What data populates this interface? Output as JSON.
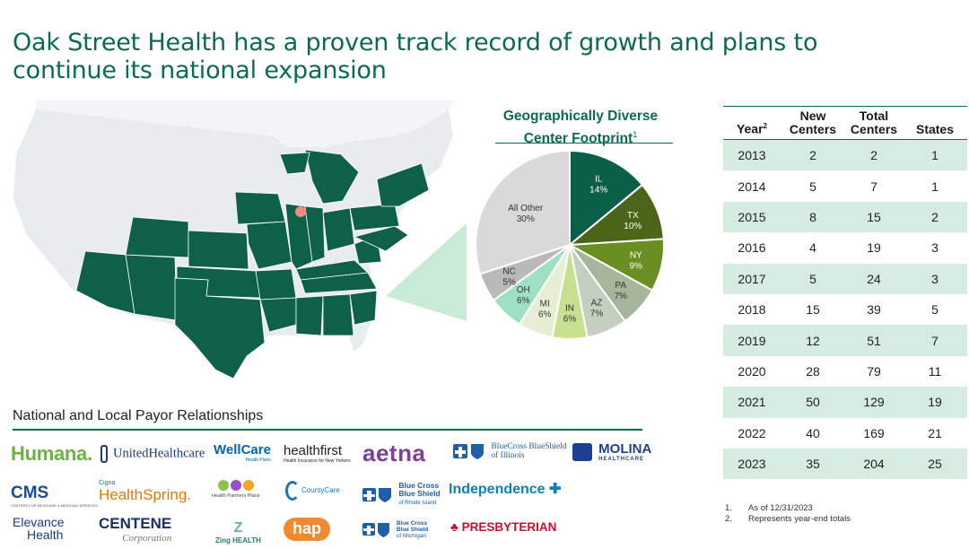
{
  "title": "Oak Street Health has a proven track record of growth and plans to continue its national expansion",
  "colors": {
    "brand_green": "#0b6b4e",
    "map_state": "#0e6048",
    "map_background": "#e8ecef",
    "table_stripe": "#d6ece0"
  },
  "pie": {
    "title": "Geographically Diverse Center Footprint",
    "title_footnote": "1"
  },
  "chart_data": {
    "type": "pie",
    "title": "Geographically Diverse Center Footprint",
    "slices": [
      {
        "label": "IL",
        "value": 14,
        "display": "14%",
        "color": "#0b5f48",
        "text_color": "#ffffff"
      },
      {
        "label": "TX",
        "value": 10,
        "display": "10%",
        "color": "#4a6518",
        "text_color": "#ffffff"
      },
      {
        "label": "NY",
        "value": 9,
        "display": "9%",
        "color": "#6b8e23",
        "text_color": "#ffffff"
      },
      {
        "label": "PA",
        "value": 7,
        "display": "7%",
        "color": "#a6b69a",
        "text_color": "#333333"
      },
      {
        "label": "AZ",
        "value": 7,
        "display": "7%",
        "color": "#c5cfbf",
        "text_color": "#333333"
      },
      {
        "label": "IN",
        "value": 6,
        "display": "6%",
        "color": "#c7e08f",
        "text_color": "#333333"
      },
      {
        "label": "MI",
        "value": 6,
        "display": "6%",
        "color": "#e6efd4",
        "text_color": "#333333"
      },
      {
        "label": "OH",
        "value": 6,
        "display": "6%",
        "color": "#9fe0c4",
        "text_color": "#333333"
      },
      {
        "label": "NC",
        "value": 5,
        "display": "5%",
        "color": "#b9b9b9",
        "text_color": "#333333"
      },
      {
        "label": "All Other",
        "value": 30,
        "display": "30%",
        "color": "#d9d9d9",
        "text_color": "#333333"
      }
    ]
  },
  "table": {
    "headers": {
      "year": "Year",
      "year_sup": "2",
      "new1": "New",
      "new2": "Centers",
      "total1": "Total",
      "total2": "Centers",
      "states": "States"
    },
    "rows": [
      {
        "year": "2013",
        "new": "2",
        "total": "2",
        "states": "1"
      },
      {
        "year": "2014",
        "new": "5",
        "total": "7",
        "states": "1"
      },
      {
        "year": "2015",
        "new": "8",
        "total": "15",
        "states": "2"
      },
      {
        "year": "2016",
        "new": "4",
        "total": "19",
        "states": "3"
      },
      {
        "year": "2017",
        "new": "5",
        "total": "24",
        "states": "3"
      },
      {
        "year": "2018",
        "new": "15",
        "total": "39",
        "states": "5"
      },
      {
        "year": "2019",
        "new": "12",
        "total": "51",
        "states": "7"
      },
      {
        "year": "2020",
        "new": "28",
        "total": "79",
        "states": "11"
      },
      {
        "year": "2021",
        "new": "50",
        "total": "129",
        "states": "19"
      },
      {
        "year": "2022",
        "new": "40",
        "total": "169",
        "states": "21"
      },
      {
        "year": "2023",
        "new": "35",
        "total": "204",
        "states": "25"
      }
    ]
  },
  "footnotes": [
    {
      "num": "1.",
      "text": "As of 12/31/2023"
    },
    {
      "num": "2.",
      "text": "Represents year-end totals"
    }
  ],
  "payors": {
    "title": "National and Local Payor Relationships",
    "logos": {
      "humana": "Humana.",
      "uhc": "UnitedHealthcare",
      "wellcare": "WellCare",
      "wellcare_sub": "Health Plans",
      "healthfirst": "healthfirst",
      "healthfirst_sub": "Health Insurance for New Yorkers",
      "aetna": "aetna",
      "bcbsil_1": "BlueCross BlueShield",
      "bcbsil_2": "of Illinois",
      "molina": "MOLINA",
      "molina_sub": "HEALTHCARE",
      "cms": "CMS",
      "cms_sub": "CENTERS FOR MEDICARE & MEDICAID SERVICES",
      "cigna_top": "Cigna",
      "cigna": "HealthSpring.",
      "hpp": "Health Partners Plans",
      "countycare": "CountyCare",
      "bcbsri_1": "Blue Cross",
      "bcbsri_2": "Blue Shield",
      "bcbsri_3": "of Rhode Island",
      "independence": "Independence",
      "elevance_1": "Elevance",
      "elevance_2": "Health",
      "centene": "CENTENE",
      "centene_sub": "Corporation",
      "zing": "Zing HEALTH",
      "hap": "hap",
      "bcbsmi_1": "Blue Cross",
      "bcbsmi_2": "Blue Shield",
      "bcbsmi_3": "of Michigan",
      "presbyterian": "PRESBYTERIAN"
    }
  }
}
